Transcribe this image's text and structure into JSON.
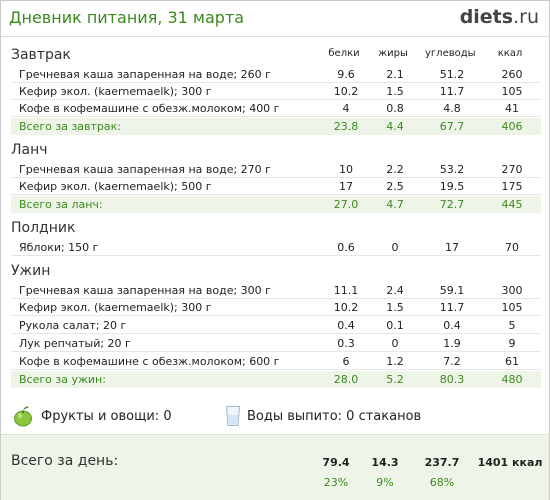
{
  "header": {
    "title": "Дневник питания, 31 марта",
    "brand_main": "diets",
    "brand_suffix": ".ru"
  },
  "columns": {
    "protein": "белки",
    "fat": "жиры",
    "carbs": "углеводы",
    "kcal": "ккал"
  },
  "meals": [
    {
      "name": "Завтрак",
      "items": [
        {
          "name": "Гречневая каша запаренная на воде; 260 г",
          "protein": "9.6",
          "fat": "2.1",
          "carbs": "51.2",
          "kcal": "260"
        },
        {
          "name": "Кефир экол. (kaernemaelk); 300 г",
          "protein": "10.2",
          "fat": "1.5",
          "carbs": "11.7",
          "kcal": "105"
        },
        {
          "name": "Кофе в кофемашине с обезж.молоком; 400 г",
          "protein": "4",
          "fat": "0.8",
          "carbs": "4.8",
          "kcal": "41"
        }
      ],
      "total": {
        "name": "Всего за завтрак:",
        "protein": "23.8",
        "fat": "4.4",
        "carbs": "67.7",
        "kcal": "406"
      }
    },
    {
      "name": "Ланч",
      "items": [
        {
          "name": "Гречневая каша запаренная на воде; 270 г",
          "protein": "10",
          "fat": "2.2",
          "carbs": "53.2",
          "kcal": "270"
        },
        {
          "name": "Кефир экол. (kaernemaelk); 500 г",
          "protein": "17",
          "fat": "2.5",
          "carbs": "19.5",
          "kcal": "175"
        }
      ],
      "total": {
        "name": "Всего за ланч:",
        "protein": "27.0",
        "fat": "4.7",
        "carbs": "72.7",
        "kcal": "445"
      }
    },
    {
      "name": "Полдник",
      "items": [
        {
          "name": "Яблоки; 150 г",
          "protein": "0.6",
          "fat": "0",
          "carbs": "17",
          "kcal": "70"
        }
      ]
    },
    {
      "name": "Ужин",
      "items": [
        {
          "name": "Гречневая каша запаренная на воде; 300 г",
          "protein": "11.1",
          "fat": "2.4",
          "carbs": "59.1",
          "kcal": "300"
        },
        {
          "name": "Кефир экол. (kaernemaelk); 300 г",
          "protein": "10.2",
          "fat": "1.5",
          "carbs": "11.7",
          "kcal": "105"
        },
        {
          "name": "Рукола салат; 20 г",
          "protein": "0.4",
          "fat": "0.1",
          "carbs": "0.4",
          "kcal": "5"
        },
        {
          "name": "Лук репчатый; 20 г",
          "protein": "0.3",
          "fat": "0",
          "carbs": "1.9",
          "kcal": "9"
        },
        {
          "name": "Кофе в кофемашине с обезж.молоком; 600 г",
          "protein": "6",
          "fat": "1.2",
          "carbs": "7.2",
          "kcal": "61"
        }
      ],
      "total": {
        "name": "Всего за ужин:",
        "protein": "28.0",
        "fat": "5.2",
        "carbs": "80.3",
        "kcal": "480"
      }
    }
  ],
  "extras": {
    "fruit_icon": "apple-icon",
    "fruit_text": "Фрукты и овощи: 0",
    "water_icon": "glass-icon",
    "water_text": "Воды выпито: 0 стаканов"
  },
  "day_total": {
    "label": "Всего за день:",
    "protein": "79.4",
    "fat": "14.3",
    "carbs": "237.7",
    "kcal": "1401 ккал",
    "protein_pct": "23%",
    "fat_pct": "9%",
    "carbs_pct": "68%"
  },
  "colors": {
    "accent": "#3a8a1e",
    "total_bg": "#eef5e8"
  }
}
